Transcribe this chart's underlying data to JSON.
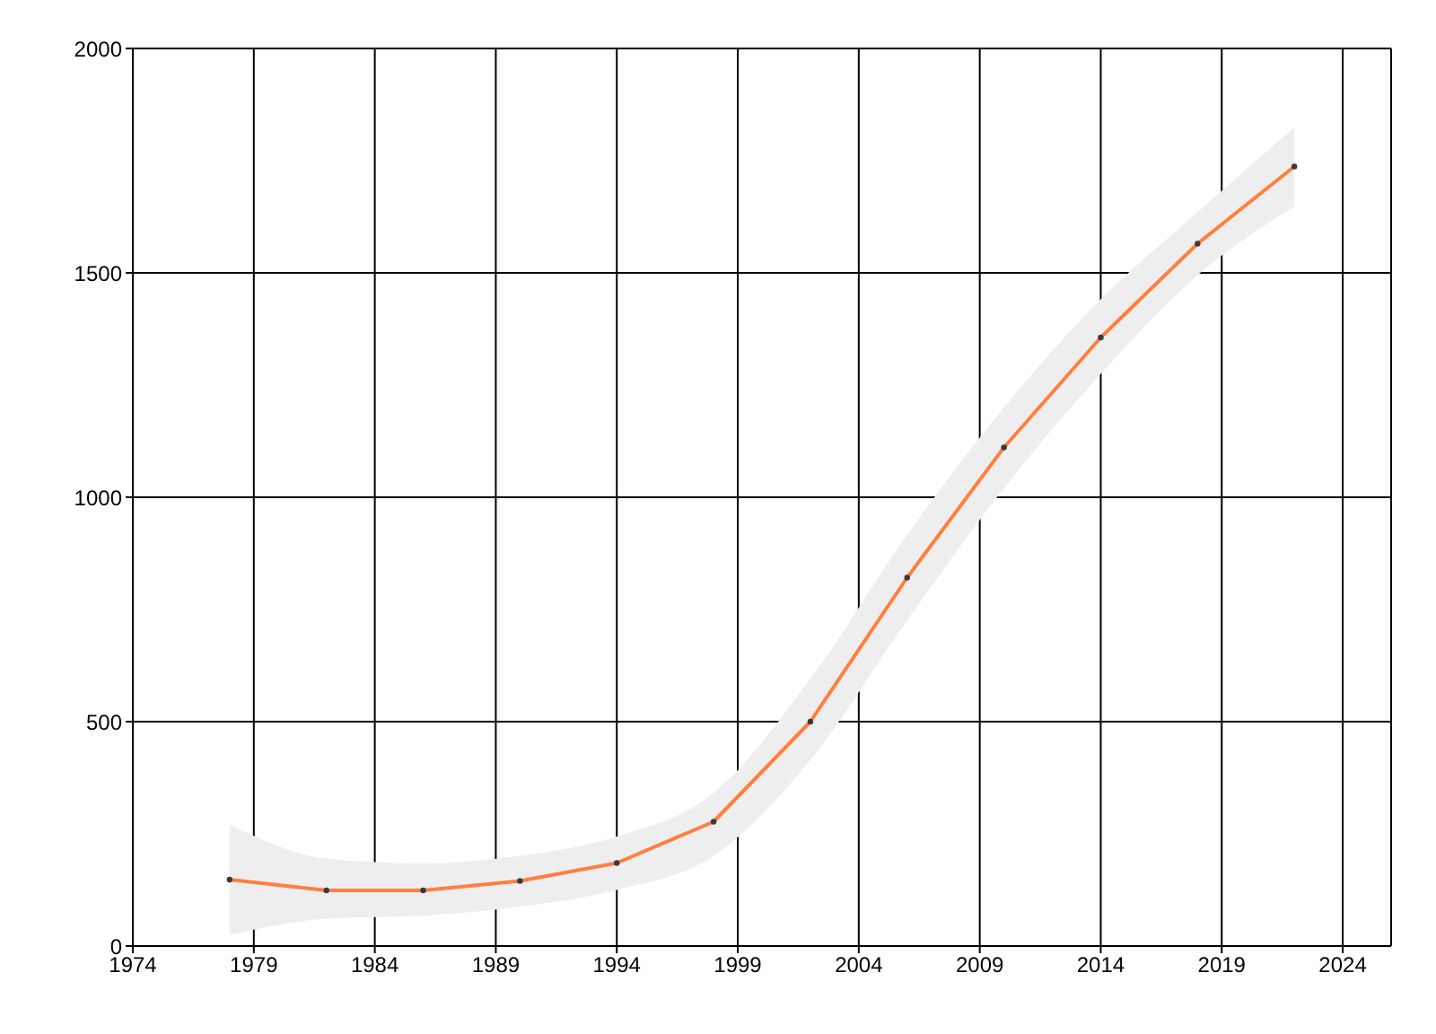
{
  "chart_data": {
    "type": "line",
    "x": [
      1978,
      1982,
      1986,
      1990,
      1994,
      1998,
      2002,
      2006,
      2010,
      2014,
      2018,
      2022
    ],
    "series": [
      {
        "color": "#ff7f3f",
        "values": [
          148,
          124,
          124,
          145,
          185,
          277,
          500,
          821,
          1111,
          1356,
          1565,
          1737
        ],
        "lower": [
          25,
          61,
          68,
          88,
          125,
          201,
          415,
          726,
          1020,
          1275,
          1495,
          1648
        ],
        "upper": [
          271,
          195,
          184,
          201,
          244,
          341,
          595,
          916,
          1200,
          1441,
          1635,
          1824
        ]
      }
    ],
    "xlim": [
      1974,
      2026
    ],
    "xticks": [
      1974,
      1979,
      1984,
      1989,
      1994,
      1999,
      2004,
      2009,
      2014,
      2019,
      2024
    ],
    "ylim": [
      0,
      2000
    ],
    "yticks": [
      0,
      500,
      1000,
      1500,
      2000
    ],
    "grid": true,
    "marker": "circle",
    "line_style": "solid"
  }
}
